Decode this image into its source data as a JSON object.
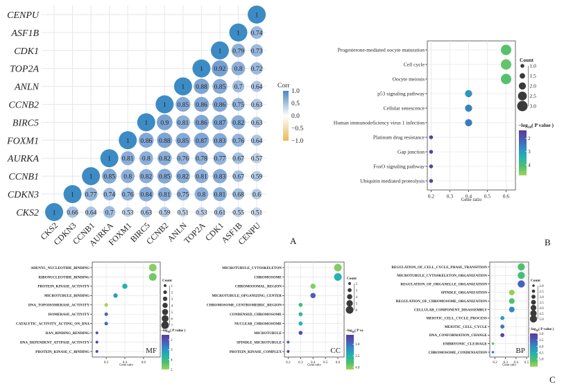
{
  "chart_data": [
    {
      "id": "A",
      "type": "heatmap",
      "subtype": "correlation-circle-lower-triangle",
      "panel_label": "A",
      "genes_x": [
        "CKS2",
        "CDKN3",
        "CCNB1",
        "AURKA",
        "FOXM1",
        "BIRC5",
        "CCNB2",
        "ANLN",
        "TOP2A",
        "CDK1",
        "ASF1B",
        "CENPU"
      ],
      "genes_y_top_to_bottom": [
        "CENPU",
        "ASF1B",
        "CDK1",
        "TOP2A",
        "ANLN",
        "CCNB2",
        "BIRC5",
        "FOXM1",
        "AURKA",
        "CCNB1",
        "CDKN3",
        "CKS2"
      ],
      "matrix_rows_bottom_to_top": [
        [
          1,
          0.66,
          0.64,
          0.7,
          0.53,
          0.63,
          0.59,
          0.51,
          0.53,
          0.61,
          0.55,
          0.51
        ],
        [
          null,
          1,
          0.77,
          0.74,
          0.76,
          0.84,
          0.81,
          0.75,
          0.8,
          0.81,
          0.68,
          0.6
        ],
        [
          null,
          null,
          1,
          0.85,
          0.8,
          0.82,
          0.85,
          0.82,
          0.81,
          0.83,
          0.67,
          0.59
        ],
        [
          null,
          null,
          null,
          1,
          0.81,
          0.8,
          0.82,
          0.76,
          0.78,
          0.77,
          0.67,
          0.57
        ],
        [
          null,
          null,
          null,
          null,
          1,
          0.86,
          0.88,
          0.85,
          0.87,
          0.83,
          0.76,
          0.64
        ],
        [
          null,
          null,
          null,
          null,
          null,
          1,
          0.9,
          0.81,
          0.86,
          0.87,
          0.82,
          0.63
        ],
        [
          null,
          null,
          null,
          null,
          null,
          null,
          1,
          0.85,
          0.86,
          0.86,
          0.75,
          0.63
        ],
        [
          null,
          null,
          null,
          null,
          null,
          null,
          null,
          1,
          0.88,
          0.85,
          0.7,
          0.64
        ],
        [
          null,
          null,
          null,
          null,
          null,
          null,
          null,
          null,
          1,
          0.92,
          0.8,
          0.72
        ],
        [
          null,
          null,
          null,
          null,
          null,
          null,
          null,
          null,
          null,
          1,
          0.79,
          0.73
        ],
        [
          null,
          null,
          null,
          null,
          null,
          null,
          null,
          null,
          null,
          null,
          1,
          0.74
        ],
        [
          null,
          null,
          null,
          null,
          null,
          null,
          null,
          null,
          null,
          null,
          null,
          1
        ]
      ],
      "legend": {
        "title": "Corr",
        "ticks": [
          "1.0",
          "0.5",
          "0.0",
          "−0.5",
          "−1.0"
        ],
        "range": [
          -1,
          1
        ],
        "colors": {
          "high": "#4a86c0",
          "mid": "#ffffff",
          "low": "#e9b85a"
        }
      }
    },
    {
      "id": "B",
      "type": "scatter",
      "subtype": "enrichment-dotplot",
      "panel_label": "B",
      "xlabel": "Gene ratio",
      "xticks": [
        "0.2",
        "0.3",
        "0.4",
        "0.5",
        "0.6"
      ],
      "xlim": [
        0.18,
        0.65
      ],
      "terms": [
        "Progesterone-mediated oocyte maturation",
        "Cell cycle",
        "Oocyte meiosis",
        "p53 signaling pathway",
        "Cellular senescence",
        "Human immunodeficiency virus 1 infection",
        "Platinum drug resistance",
        "Gap junction",
        "FoxO signaling pathway",
        "Ubiquitin mediated proteolysis"
      ],
      "gene_ratio": [
        0.6,
        0.6,
        0.6,
        0.4,
        0.4,
        0.4,
        0.2,
        0.2,
        0.2,
        0.2
      ],
      "count": [
        3,
        3,
        3,
        2,
        2,
        2,
        1,
        1,
        1,
        1
      ],
      "neg_log10_p": [
        4.2,
        4.3,
        4.2,
        2.9,
        2.6,
        2.5,
        1.6,
        1.6,
        1.6,
        1.6
      ],
      "size_legend": {
        "title": "Count",
        "ticks": [
          "1.0",
          "1.5",
          "2.0",
          "2.5",
          "3.0"
        ],
        "values": [
          1,
          1.5,
          2,
          2.5,
          3
        ]
      },
      "color_legend": {
        "title_prefix": "−log",
        "title_sub": "10",
        "title_suffix": "( P value )",
        "ticks": [
          "2",
          "3",
          "4"
        ],
        "range": [
          1.4,
          4.8
        ]
      }
    },
    {
      "id": "C-MF",
      "type": "scatter",
      "subtype": "enrichment-dotplot",
      "panel_label": "MF",
      "xlabel": "Gene ratio",
      "xticks": [
        "0.2",
        "0.4",
        "0.6"
      ],
      "xlim": [
        0.05,
        0.78
      ],
      "terms": [
        "ADENYL_NUCLEOTIDE_BINDING",
        "RIBONUCLEOTIDE_BINDING",
        "PROTEIN_KINASE_ACTIVITY",
        "MICROTUBULE_BINDING",
        "DNA_TOPOISOMERASE_ACTIVITY",
        "ISOMERASE_ACTIVITY",
        "CATALYTIC_ACTIVITY_ACTING_ON_DNA",
        "DAN_BINDING_BENDING",
        "DNA_DEPENDENT_ATTPASE_ACTIVITY",
        "PROTEIN_KINASE_C_BINDING"
      ],
      "gene_ratio": [
        0.7,
        0.7,
        0.4,
        0.3,
        0.2,
        0.2,
        0.2,
        0.1,
        0.1,
        0.1
      ],
      "count": [
        7,
        7,
        4,
        3,
        2,
        2,
        2,
        1,
        1,
        1
      ],
      "neg_log10_p": [
        4.8,
        4.6,
        3.5,
        3.2,
        5.0,
        2.4,
        2.4,
        1.9,
        1.7,
        1.7
      ],
      "size_legend": {
        "title": "Count",
        "ticks": [
          "1",
          "2",
          "3",
          "4",
          "5",
          "6",
          "7"
        ],
        "values": [
          1,
          2,
          3,
          4,
          5,
          6,
          7
        ]
      },
      "color_legend": {
        "title_prefix": "−log",
        "title_sub": "10",
        "title_suffix": "( P value )",
        "ticks": [
          "2",
          "3",
          "4",
          "5"
        ],
        "range": [
          1.5,
          5.0
        ]
      }
    },
    {
      "id": "C-CC",
      "type": "scatter",
      "subtype": "enrichment-dotplot",
      "panel_label": "CC",
      "xlabel": "Gene ratio",
      "xticks": [
        "0.2",
        "0.3",
        "0.4",
        "0.5",
        "0.6"
      ],
      "xlim": [
        0.17,
        0.65
      ],
      "terms": [
        "MICROTUBULE_CYTOSKELETON",
        "CHROMOSOME",
        "CHROMOSOMAL_REGION",
        "MICROTUBULE_OPGANIZING_CENTER",
        "CHROMOSOME_CENTROMEIRIC_REGION",
        "CONDENSED_CHROMOSOME",
        "NUCLEAR_CHROMOSOME",
        "MICROTUBULE",
        "SPINDLE_MICROTUBULE",
        "PROTEIN_KINASE_COMPLEX"
      ],
      "gene_ratio": [
        0.6,
        0.6,
        0.4,
        0.4,
        0.3,
        0.3,
        0.3,
        0.3,
        0.2,
        0.2
      ],
      "count": [
        6,
        6,
        4,
        4,
        3,
        3,
        3,
        3,
        2,
        2
      ],
      "neg_log10_p": [
        4.0,
        3.5,
        4.0,
        2.9,
        3.7,
        3.6,
        3.5,
        2.8,
        3.0,
        2.7
      ],
      "size_legend": {
        "title": "Count",
        "ticks": [
          "2",
          "3",
          "4",
          "5",
          "6"
        ],
        "values": [
          2,
          3,
          4,
          5,
          6
        ]
      },
      "color_legend": {
        "title_prefix": "−log",
        "title_sub": "10",
        "title_suffix": "( P va",
        "ticks": [
          "3.0",
          "3.5",
          "4.0"
        ],
        "range": [
          2.6,
          4.1
        ]
      }
    },
    {
      "id": "C-BP",
      "type": "scatter",
      "subtype": "enrichment-dotplot",
      "panel_label": "BP",
      "figure_label": "C",
      "xlabel": "Gene ratio",
      "xticks": [
        "0.2",
        "0.3",
        "0.4",
        "0.5"
      ],
      "xlim": [
        0.15,
        0.52
      ],
      "terms": [
        "REGULATION_OF_CELL_CYCLE_PHASE_TRANSITION",
        "MICROTUBULE_CYTOSKELETON_ORGANIZATION",
        "REGULATION_OF_ORGANELLE_ORGANIZATION",
        "SPINDLE_ORGANIZATION",
        "REGULATION_OF_CHROMOSOME_ORGANIZATION",
        "CELLULAR_COMPONENT_DISASSEMBLY",
        "MEIOTIC_CELL_CYCLE_PROCESS",
        "MEIOTIC_CELL_CYCLE",
        "DNA_CONFORMATION_CHANGE",
        "EMBRYONIC_CLEAVAGE",
        "CHROMOSOME_CONDENSATION"
      ],
      "gene_ratio": [
        0.45,
        0.45,
        0.45,
        0.36,
        0.36,
        0.36,
        0.27,
        0.27,
        0.27,
        0.18,
        0.18
      ],
      "count": [
        5,
        5,
        5,
        4,
        4,
        4,
        3,
        3,
        3,
        2,
        2
      ],
      "neg_log10_p": [
        5.1,
        5.0,
        3.6,
        5.5,
        5.1,
        4.0,
        4.3,
        3.8,
        3.2,
        5.2,
        3.8
      ],
      "size_legend": {
        "title": "Count",
        "ticks": [
          "2.0",
          "2.5",
          "3.0",
          "3.5",
          "4.0",
          "4.5",
          "5.0"
        ],
        "values": [
          2,
          2.5,
          3,
          3.5,
          4,
          4.5,
          5
        ]
      },
      "color_legend": {
        "title_prefix": "−log",
        "title_sub": "10",
        "title_suffix": "( P value )",
        "ticks": [
          "3.0",
          "3.5",
          "4.0",
          "4.5",
          "5.0"
        ],
        "range": [
          3.0,
          5.6
        ]
      }
    }
  ],
  "figure_labels": {
    "a": "A",
    "b": "B",
    "c": "C"
  }
}
